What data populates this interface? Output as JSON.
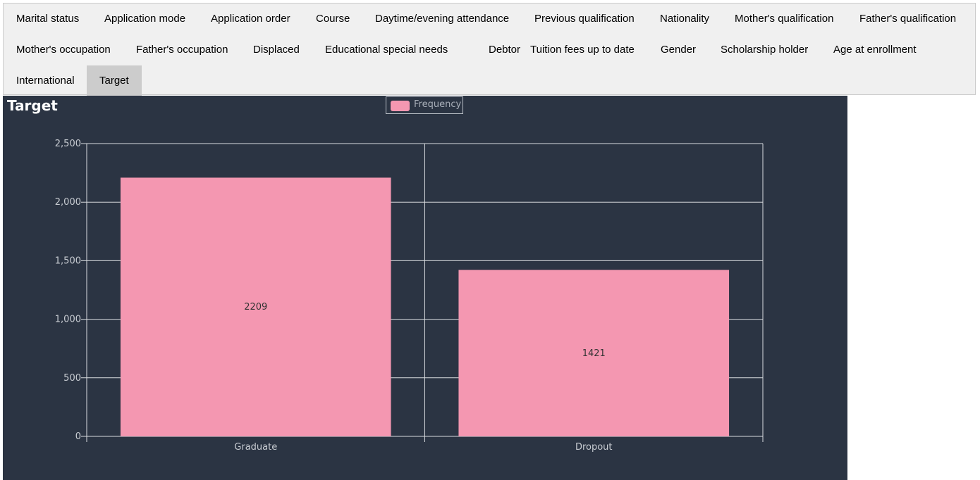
{
  "tabs": [
    {
      "label": "Marital status",
      "active": false
    },
    {
      "label": "Application mode",
      "active": false
    },
    {
      "label": "Application order",
      "active": false
    },
    {
      "label": "Course",
      "active": false
    },
    {
      "label": "Daytime/evening attendance",
      "active": false
    },
    {
      "label": "Previous qualification",
      "active": false
    },
    {
      "label": "Nationality",
      "active": false
    },
    {
      "label": "Mother's qualification",
      "active": false
    },
    {
      "label": "Father's qualification",
      "active": false
    },
    {
      "label": "Mother's occupation",
      "active": false
    },
    {
      "label": "Father's occupation",
      "active": false
    },
    {
      "label": "Displaced",
      "active": false
    },
    {
      "label": "Educational special needs",
      "active": false
    },
    {
      "label": "Debtor",
      "active": false
    },
    {
      "label": "Tuition fees up to date",
      "active": false
    },
    {
      "label": "Gender",
      "active": false
    },
    {
      "label": "Scholarship holder",
      "active": false
    },
    {
      "label": "Age at enrollment",
      "active": false
    },
    {
      "label": "International",
      "active": false
    },
    {
      "label": "Target",
      "active": true
    }
  ],
  "colors": {
    "panel_bg": "#2b3443",
    "bar": "#f497b1",
    "grid": "#d9dce0",
    "active_tab": "#cccccc"
  },
  "chart_data": {
    "type": "bar",
    "title": "Target",
    "categories": [
      "Graduate",
      "Dropout"
    ],
    "series": [
      {
        "name": "Frequency",
        "values": [
          2209,
          1421
        ]
      }
    ],
    "data_labels": [
      "2209",
      "1421"
    ],
    "yticks": [
      "0",
      "500",
      "1,000",
      "1,500",
      "2,000",
      "2,500"
    ],
    "ylim": [
      0,
      2500
    ],
    "grid": true,
    "legend_position": "top-center"
  }
}
